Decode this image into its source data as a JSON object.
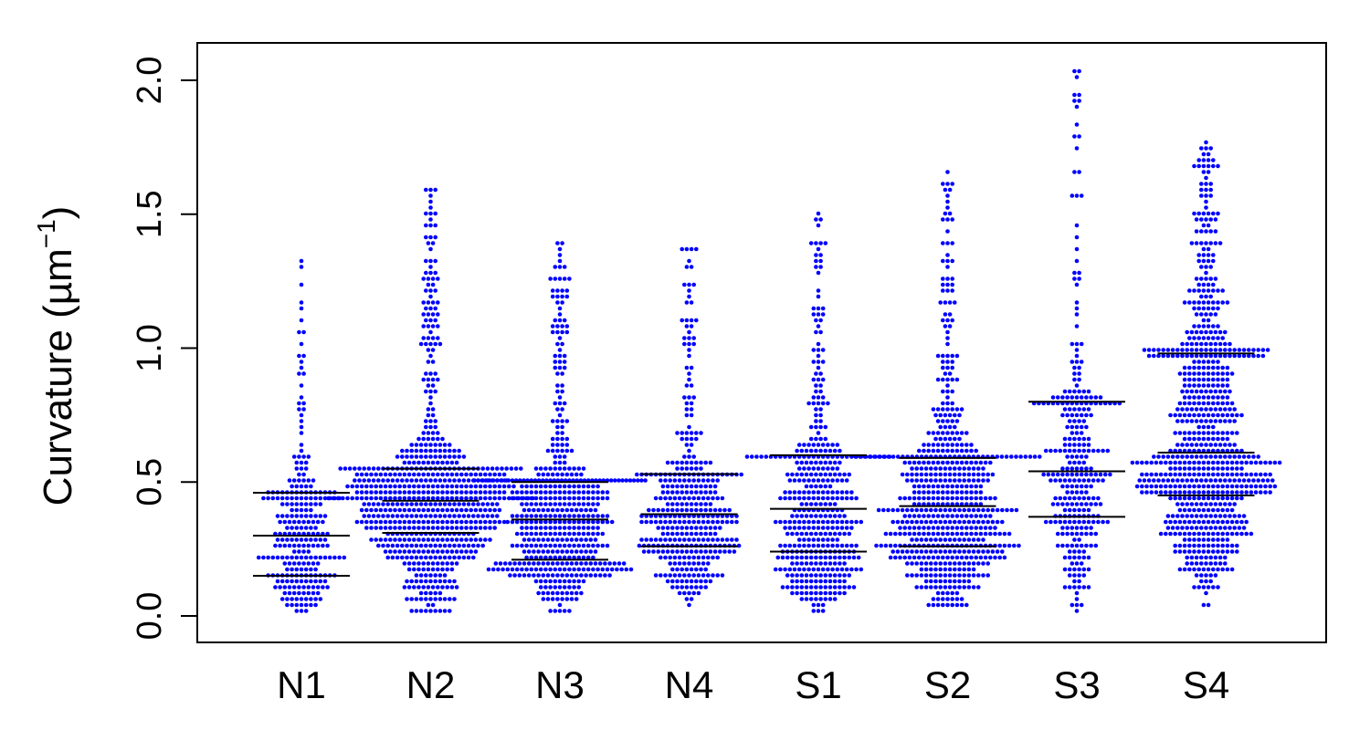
{
  "chart_data": {
    "type": "beeswarm",
    "ylabel": {
      "prefix": "Curvature (µm",
      "superscript": "−1",
      "suffix": ")"
    },
    "xlabel": "",
    "ylim": [
      0.0,
      2.0
    ],
    "yticks": [
      {
        "value": 0.0,
        "label": "0.0"
      },
      {
        "value": 0.5,
        "label": "0.5"
      },
      {
        "value": 1.0,
        "label": "1.0"
      },
      {
        "value": 1.5,
        "label": "1.5"
      },
      {
        "value": 2.0,
        "label": "2.0"
      }
    ],
    "point_color": "#0000ff",
    "quartile_line_color": "#000000",
    "grid": false,
    "categories": [
      {
        "name": "N1",
        "q1": 0.15,
        "median": 0.3,
        "q3": 0.46,
        "min": 0.01,
        "max": 1.32,
        "n": 260,
        "spread": 1.0
      },
      {
        "name": "N2",
        "q1": 0.31,
        "median": 0.43,
        "q3": 0.55,
        "min": 0.01,
        "max": 1.6,
        "n": 700,
        "spread": 1.6
      },
      {
        "name": "N3",
        "q1": 0.21,
        "median": 0.36,
        "q3": 0.5,
        "min": 0.01,
        "max": 1.4,
        "n": 520,
        "spread": 1.3
      },
      {
        "name": "N4",
        "q1": 0.26,
        "median": 0.38,
        "q3": 0.53,
        "min": 0.03,
        "max": 1.38,
        "n": 380,
        "spread": 1.05
      },
      {
        "name": "S1",
        "q1": 0.24,
        "median": 0.4,
        "q3": 0.6,
        "min": 0.01,
        "max": 1.5,
        "n": 440,
        "spread": 1.1
      },
      {
        "name": "S2",
        "q1": 0.26,
        "median": 0.41,
        "q3": 0.59,
        "min": 0.03,
        "max": 1.65,
        "n": 620,
        "spread": 1.4
      },
      {
        "name": "S3",
        "q1": 0.37,
        "median": 0.54,
        "q3": 0.8,
        "min": 0.01,
        "max": 2.04,
        "n": 300,
        "spread": 0.95
      },
      {
        "name": "S4",
        "q1": 0.45,
        "median": 0.61,
        "q3": 0.98,
        "min": 0.03,
        "max": 1.76,
        "n": 760,
        "spread": 1.4
      }
    ]
  }
}
